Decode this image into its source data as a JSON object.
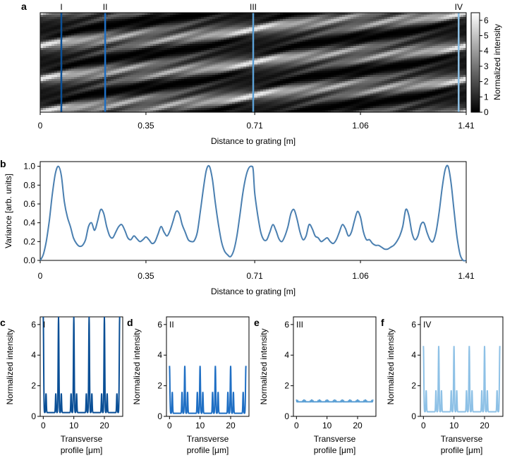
{
  "chart_data": [
    {
      "id": "a",
      "type": "heatmap",
      "panel_letter": "a",
      "xlabel": "Distance to grating [m]",
      "xlim": [
        0,
        1.41
      ],
      "xticks": [
        0,
        0.35,
        0.71,
        1.06,
        1.41
      ],
      "xtick_labels": [
        "0",
        "0.35",
        "0.71",
        "1.06",
        "1.41"
      ],
      "colorbar": {
        "label": "Normalized intensity",
        "range": [
          0,
          6.5
        ],
        "ticks": [
          "0",
          "1",
          "2",
          "3",
          "4",
          "5",
          "6"
        ]
      },
      "markers": [
        {
          "label": "I",
          "x": 0.07,
          "color": "#0a4f96"
        },
        {
          "label": "II",
          "x": 0.215,
          "color": "#1f6fc4"
        },
        {
          "label": "III",
          "x": 0.705,
          "color": "#5b9fd4"
        },
        {
          "label": "IV",
          "x": 1.385,
          "color": "#8ec1e6"
        }
      ],
      "talbot_length_m": 1.41,
      "periods_shown": 3
    },
    {
      "id": "b",
      "type": "line",
      "panel_letter": "b",
      "xlabel": "Distance to grating [m]",
      "ylabel": "Variance [arb. units]",
      "xlim": [
        0,
        1.41
      ],
      "ylim": [
        0,
        1.05
      ],
      "xticks": [
        0,
        0.35,
        0.71,
        1.06,
        1.41
      ],
      "xtick_labels": [
        "0",
        "0.35",
        "0.71",
        "1.06",
        "1.41"
      ],
      "yticks": [
        0,
        0.2,
        0.4,
        0.6,
        0.8,
        1.0
      ],
      "ytick_labels": [
        "0.0",
        "0.2",
        "0.4",
        "0.6",
        "0.8",
        "1.0"
      ],
      "color": "#4a7fb0",
      "x": [
        0,
        0.01,
        0.02,
        0.03,
        0.04,
        0.05,
        0.06,
        0.07,
        0.08,
        0.09,
        0.1,
        0.11,
        0.12,
        0.13,
        0.14,
        0.15,
        0.16,
        0.17,
        0.18,
        0.19,
        0.2,
        0.21,
        0.22,
        0.23,
        0.24,
        0.25,
        0.26,
        0.27,
        0.28,
        0.29,
        0.3,
        0.31,
        0.32,
        0.33,
        0.34,
        0.35,
        0.36,
        0.37,
        0.38,
        0.39,
        0.4,
        0.41,
        0.42,
        0.43,
        0.44,
        0.45,
        0.46,
        0.47,
        0.48,
        0.49,
        0.5,
        0.51,
        0.52,
        0.53,
        0.54,
        0.55,
        0.56,
        0.57,
        0.58,
        0.59,
        0.6,
        0.61,
        0.62,
        0.63,
        0.64,
        0.65,
        0.66,
        0.67,
        0.68,
        0.69,
        0.7,
        0.705,
        0.71,
        0.72,
        0.73,
        0.74,
        0.75,
        0.76,
        0.77,
        0.78,
        0.79,
        0.8,
        0.81,
        0.82,
        0.83,
        0.84,
        0.85,
        0.86,
        0.87,
        0.88,
        0.89,
        0.9,
        0.91,
        0.92,
        0.93,
        0.94,
        0.95,
        0.96,
        0.97,
        0.98,
        0.99,
        1.0,
        1.01,
        1.02,
        1.03,
        1.04,
        1.05,
        1.06,
        1.07,
        1.08,
        1.09,
        1.1,
        1.11,
        1.12,
        1.13,
        1.14,
        1.15,
        1.16,
        1.17,
        1.18,
        1.19,
        1.2,
        1.21,
        1.22,
        1.23,
        1.24,
        1.25,
        1.26,
        1.27,
        1.28,
        1.29,
        1.3,
        1.31,
        1.32,
        1.33,
        1.34,
        1.35,
        1.36,
        1.37,
        1.38,
        1.39,
        1.4,
        1.41
      ],
      "y": [
        0.0,
        0.06,
        0.2,
        0.42,
        0.7,
        0.92,
        1.0,
        0.9,
        0.62,
        0.46,
        0.36,
        0.24,
        0.18,
        0.15,
        0.16,
        0.22,
        0.36,
        0.4,
        0.32,
        0.42,
        0.54,
        0.5,
        0.36,
        0.26,
        0.24,
        0.3,
        0.36,
        0.38,
        0.32,
        0.24,
        0.22,
        0.26,
        0.23,
        0.2,
        0.22,
        0.25,
        0.22,
        0.18,
        0.2,
        0.28,
        0.36,
        0.3,
        0.26,
        0.32,
        0.42,
        0.52,
        0.5,
        0.38,
        0.3,
        0.22,
        0.2,
        0.21,
        0.3,
        0.52,
        0.76,
        0.96,
        1.0,
        0.86,
        0.6,
        0.38,
        0.2,
        0.1,
        0.06,
        0.04,
        0.1,
        0.24,
        0.46,
        0.7,
        0.88,
        0.98,
        1.0,
        0.96,
        0.72,
        0.48,
        0.3,
        0.22,
        0.22,
        0.3,
        0.38,
        0.32,
        0.23,
        0.2,
        0.26,
        0.36,
        0.5,
        0.54,
        0.44,
        0.3,
        0.22,
        0.26,
        0.38,
        0.34,
        0.26,
        0.24,
        0.2,
        0.22,
        0.24,
        0.2,
        0.18,
        0.22,
        0.3,
        0.38,
        0.34,
        0.26,
        0.3,
        0.42,
        0.52,
        0.46,
        0.3,
        0.22,
        0.22,
        0.18,
        0.16,
        0.16,
        0.14,
        0.12,
        0.12,
        0.14,
        0.16,
        0.2,
        0.26,
        0.36,
        0.54,
        0.48,
        0.3,
        0.22,
        0.26,
        0.38,
        0.4,
        0.3,
        0.22,
        0.2,
        0.3,
        0.5,
        0.76,
        0.96,
        1.0,
        0.82,
        0.52,
        0.24,
        0.06,
        0.0,
        0.0
      ]
    },
    {
      "id": "c",
      "type": "line",
      "panel_letter": "c",
      "roman": "I",
      "color": "#0a4f96",
      "xlabel": "Transverse\nprofile [μm]",
      "ylabel": "Normalized intensity",
      "xlim": [
        -1,
        26
      ],
      "ylim": [
        0,
        6.5
      ],
      "xticks": [
        "0",
        "10",
        "20"
      ],
      "yticks": [
        "0",
        "2",
        "4",
        "6"
      ],
      "period_um": 5,
      "peak_value": 6.5,
      "side_value": 1.5,
      "base_value": 0.25
    },
    {
      "id": "d",
      "type": "line",
      "panel_letter": "d",
      "roman": "II",
      "color": "#1f6fc4",
      "xlabel": "Transverse\nprofile [μm]",
      "ylabel": "Normalized intensity",
      "xlim": [
        -1,
        26
      ],
      "ylim": [
        0,
        6.5
      ],
      "xticks": [
        "0",
        "10",
        "20"
      ],
      "yticks": [
        "0",
        "2",
        "4",
        "6"
      ],
      "period_um": 5,
      "peak_value": 3.3,
      "side_value": 1.6,
      "base_value": 0.2
    },
    {
      "id": "e",
      "type": "line",
      "panel_letter": "e",
      "roman": "III",
      "color": "#5b9fd4",
      "xlabel": "Transverse\nprofile [μm]",
      "ylabel": "Normalized intensity",
      "xlim": [
        -1,
        26
      ],
      "ylim": [
        0,
        6.5
      ],
      "xticks": [
        "0",
        "10",
        "20"
      ],
      "yticks": [
        "0",
        "2",
        "4",
        "6"
      ],
      "period_um": 2.5,
      "peak_value": 1.1,
      "side_value": 1.0,
      "base_value": 0.95
    },
    {
      "id": "f",
      "type": "line",
      "panel_letter": "f",
      "roman": "IV",
      "color": "#8ec1e6",
      "xlabel": "Transverse\nprofile [μm]",
      "ylabel": "Normalized intensity",
      "xlim": [
        -1,
        26
      ],
      "ylim": [
        0,
        6.5
      ],
      "xticks": [
        "0",
        "10",
        "20"
      ],
      "yticks": [
        "0",
        "2",
        "4",
        "6"
      ],
      "period_um": 5,
      "peak_value": 4.6,
      "side_value": 1.7,
      "base_value": 0.3
    }
  ]
}
